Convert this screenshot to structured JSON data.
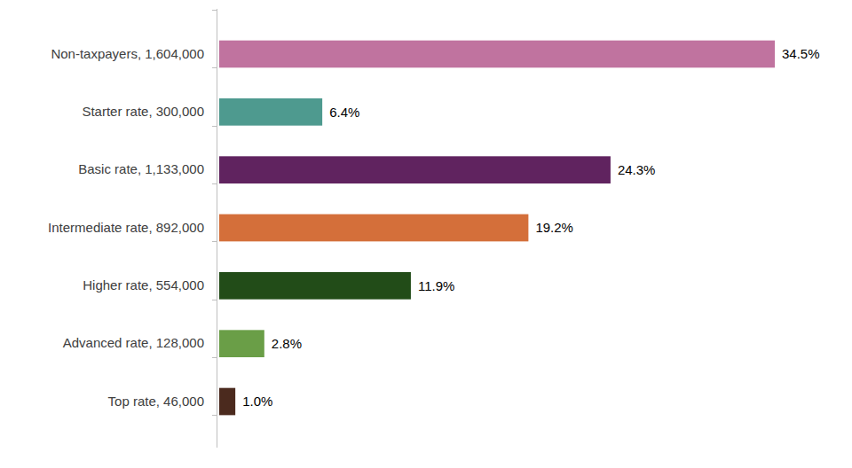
{
  "chart_data": {
    "type": "bar",
    "orientation": "horizontal",
    "categories": [
      "Non-taxpayers, 1,604,000",
      "Starter rate, 300,000",
      "Basic rate, 1,133,000",
      "Intermediate rate, 892,000",
      "Higher rate, 554,000",
      "Advanced rate, 128,000",
      "Top rate, 46,000"
    ],
    "values": [
      34.5,
      6.4,
      24.3,
      19.2,
      11.9,
      2.8,
      1.0
    ],
    "value_labels": [
      "34.5%",
      "6.4%",
      "24.3%",
      "19.2%",
      "11.9%",
      "2.8%",
      "1.0%"
    ],
    "colors": [
      "#c0739f",
      "#4e9a8f",
      "#60235f",
      "#d46f3a",
      "#224c18",
      "#6a9e47",
      "#4b2a1e"
    ],
    "data_labels": true,
    "tick_labels": "y"
  }
}
